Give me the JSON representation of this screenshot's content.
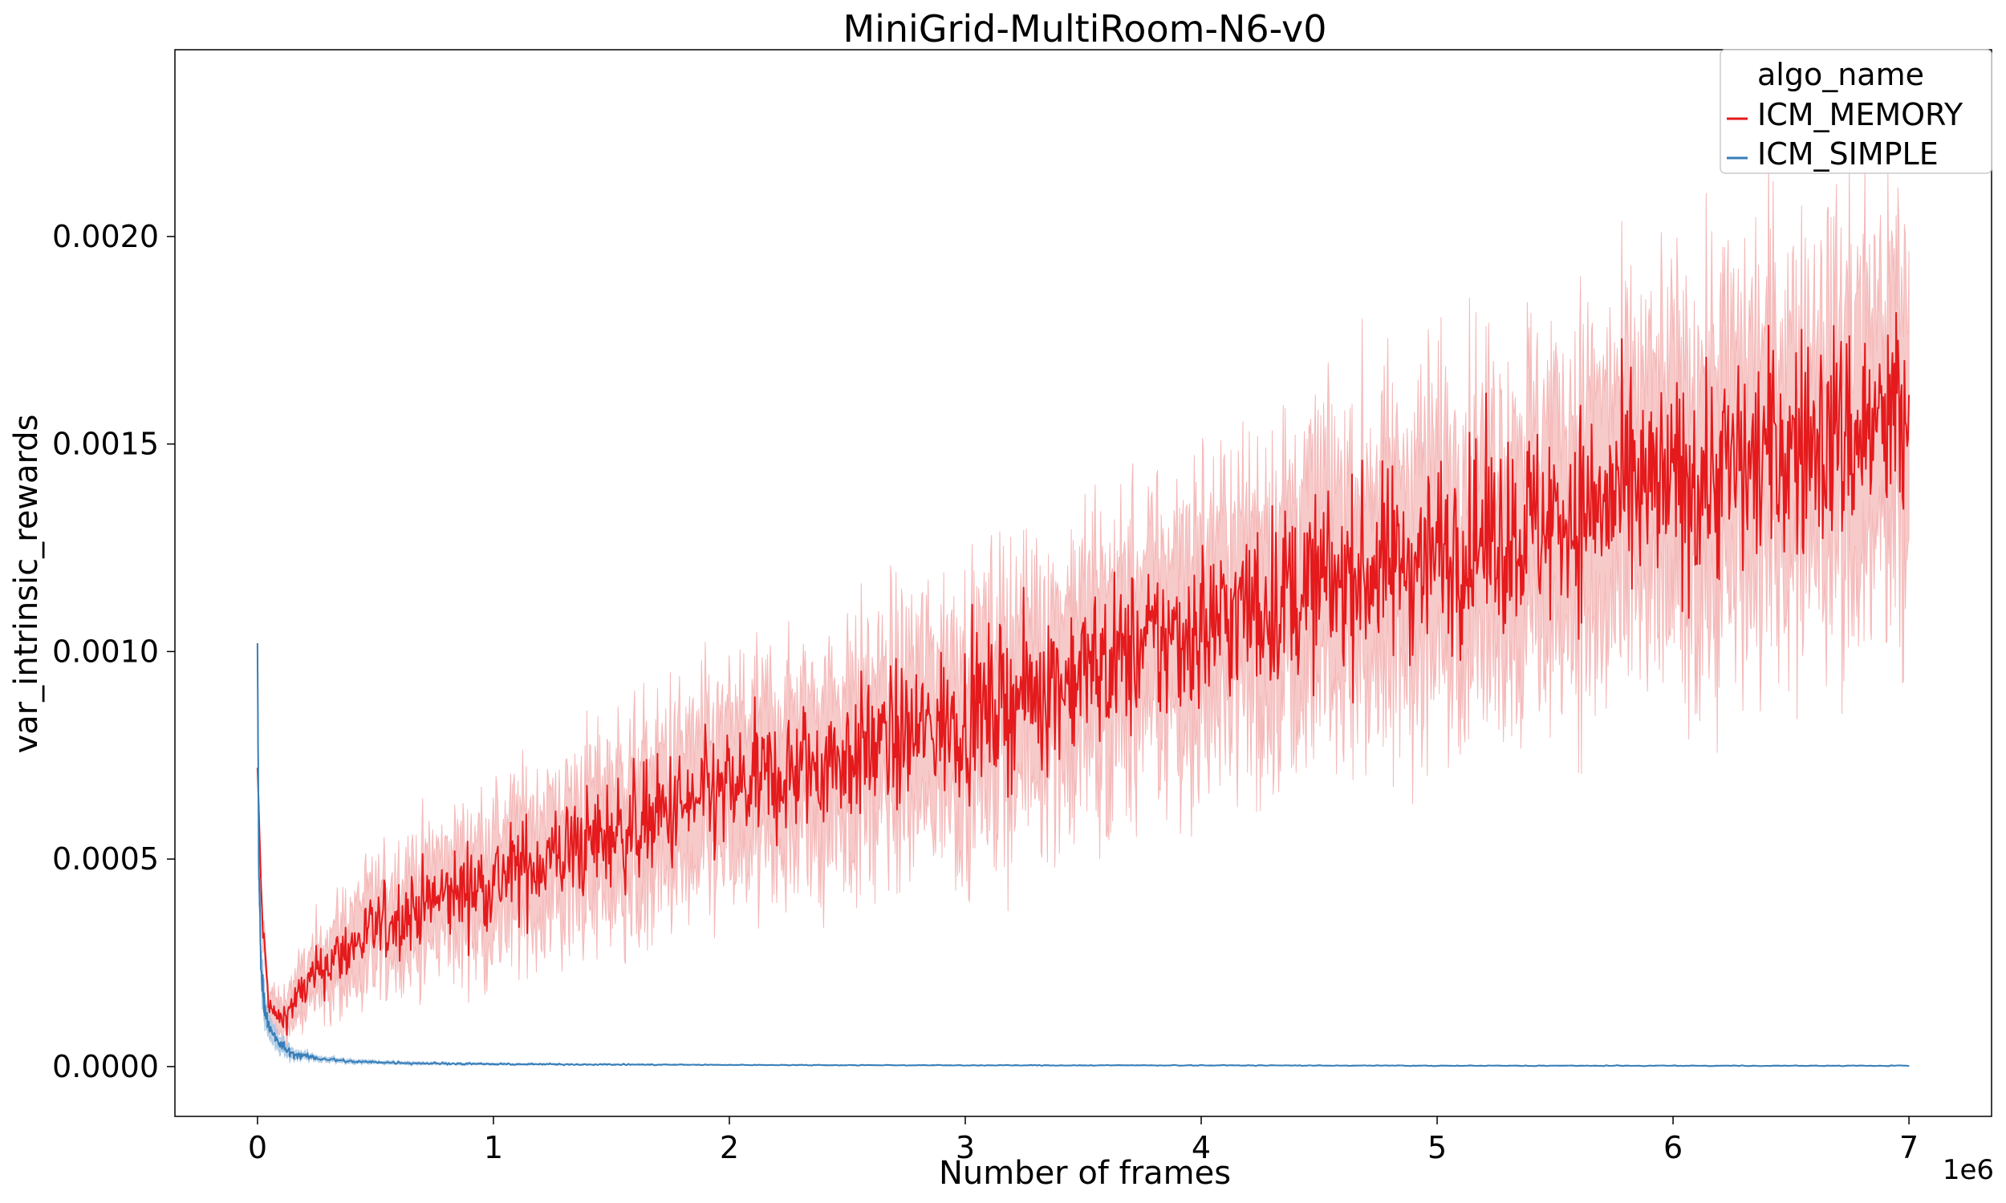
{
  "chart_data": {
    "type": "line",
    "title": "MiniGrid-MultiRoom-N6-v0",
    "xlabel": "Number of frames",
    "ylabel": "var_intrinsic_rewards",
    "x_offset_label": "1e6",
    "xlim": [
      -350000,
      7350000
    ],
    "ylim": [
      -0.00012,
      0.00245
    ],
    "x_ticks": [
      0,
      1000000,
      2000000,
      3000000,
      4000000,
      5000000,
      6000000,
      7000000
    ],
    "x_tick_labels": [
      "0",
      "1",
      "2",
      "3",
      "4",
      "5",
      "6",
      "7"
    ],
    "y_ticks": [
      0.0,
      0.0005,
      0.001,
      0.0015,
      0.002
    ],
    "y_tick_labels": [
      "0.0000",
      "0.0005",
      "0.0010",
      "0.0015",
      "0.0020"
    ],
    "grid": false,
    "legend": {
      "title": "algo_name",
      "placement": "top-right"
    },
    "series": [
      {
        "name": "ICM_MEMORY",
        "color": "#e41a1c",
        "band_color": "#f4b8b8",
        "x": [
          0,
          20000,
          50000,
          100000,
          200000,
          300000,
          500000,
          700000,
          1000000,
          1500000,
          2000000,
          2500000,
          3000000,
          3500000,
          4000000,
          4500000,
          5000000,
          5500000,
          6000000,
          6500000,
          7000000
        ],
        "values": [
          0.00072,
          0.00035,
          0.00014,
          0.00011,
          0.00019,
          0.00025,
          0.00033,
          0.00039,
          0.00045,
          0.00056,
          0.00066,
          0.00075,
          0.00084,
          0.00095,
          0.00106,
          0.00116,
          0.00124,
          0.00132,
          0.0014,
          0.00149,
          0.00156
        ],
        "band_halfwidth": [
          0.0,
          4e-05,
          4e-05,
          4e-05,
          6e-05,
          8e-05,
          0.0001,
          0.00011,
          0.00013,
          0.00015,
          0.00017,
          0.00018,
          0.0002,
          0.00021,
          0.00023,
          0.00024,
          0.00026,
          0.00027,
          0.00029,
          0.0003,
          0.00032
        ]
      },
      {
        "name": "ICM_SIMPLE",
        "color": "#377eb8",
        "band_color": "#a9c8e4",
        "x": [
          0,
          5000,
          15000,
          30000,
          60000,
          100000,
          150000,
          250000,
          400000,
          700000,
          1000000,
          2000000,
          3000000,
          4000000,
          5000000,
          6000000,
          7000000
        ],
        "values": [
          0.00102,
          0.0005,
          0.00025,
          0.00014,
          8e-05,
          5e-05,
          3e-05,
          2e-05,
          1.2e-05,
          8e-06,
          6e-06,
          4e-06,
          3e-06,
          3e-06,
          2e-06,
          2e-06,
          2e-06
        ],
        "band_halfwidth": [
          0.0,
          6e-05,
          4e-05,
          3e-05,
          2e-05,
          1.5e-05,
          1e-05,
          6e-06,
          4e-06,
          3e-06,
          2e-06,
          1e-06,
          1e-06,
          1e-06,
          1e-06,
          1e-06,
          1e-06
        ]
      }
    ]
  }
}
